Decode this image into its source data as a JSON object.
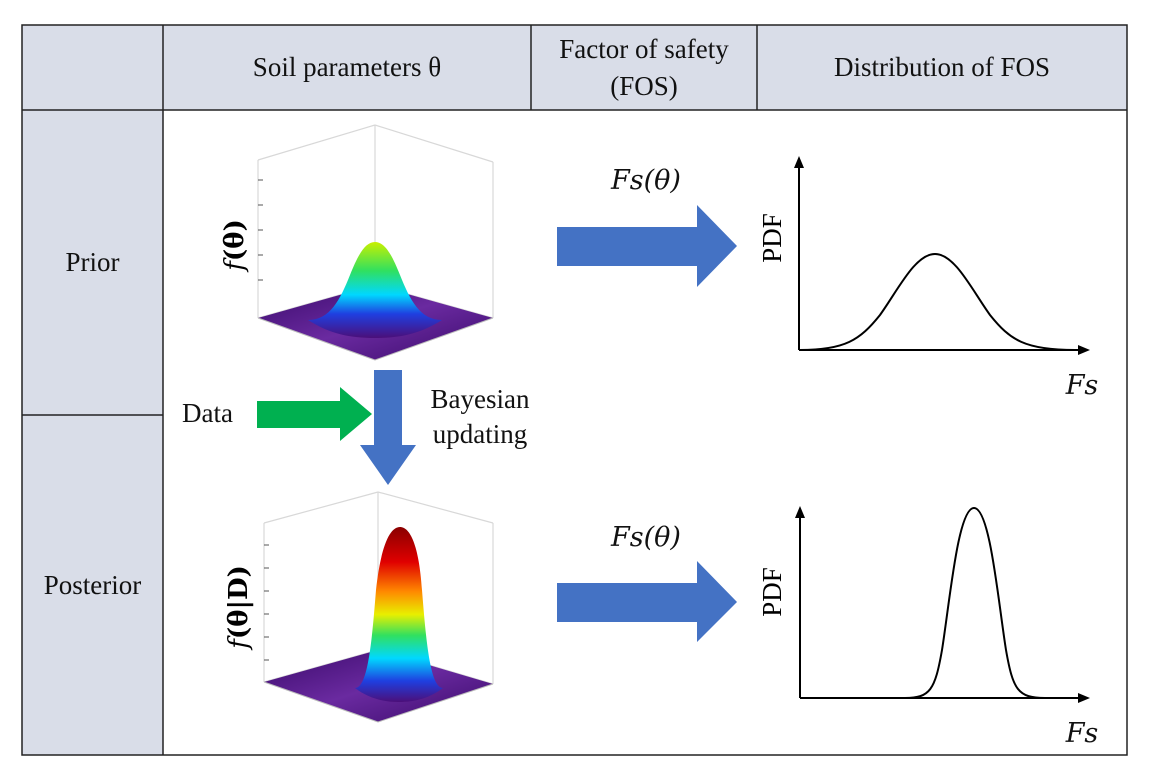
{
  "header": {
    "col1": "Soil parameters θ",
    "col2": "Factor of safety (FOS)",
    "col3": "Distribution of FOS"
  },
  "rows": {
    "prior": "Prior",
    "posterior": "Posterior"
  },
  "labels": {
    "prior_density": "f(θ)",
    "posterior_density": "f(θ|D)",
    "fos_function": "Fs(θ)",
    "pdf_axis": "PDF",
    "fs_axis": "Fs",
    "data": "Data",
    "bayes_line1": "Bayesian",
    "bayes_line2": "updating"
  },
  "colors": {
    "header_fill": "#d9dde8",
    "blue_arrow": "#4472c4",
    "green_arrow": "#00b050"
  }
}
